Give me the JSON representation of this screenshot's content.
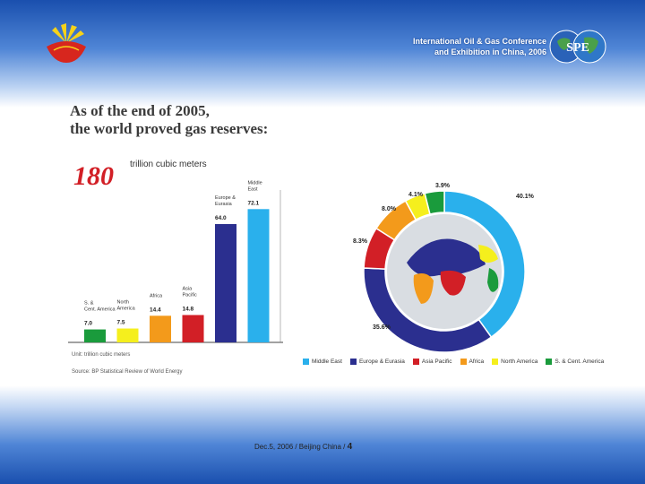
{
  "header": {
    "conference_line1": "International Oil & Gas Conference",
    "conference_line2": "and Exhibition in China, 2006",
    "spe_label": "SPE",
    "logo_icon": "company-logo-icon"
  },
  "title": {
    "line1": "As of the end of 2005,",
    "line2": "the world proved gas reserves:"
  },
  "total": {
    "value": "180",
    "unit": "trillion cubic meters"
  },
  "notes": {
    "unit": "Unit: trillion cubic meters",
    "source": "Source: BP Statistical Review of World Energy"
  },
  "footer": {
    "text": "Dec.5, 2006  /  Beijing China  /",
    "page": "4"
  },
  "chart_data": [
    {
      "type": "bar",
      "categories": [
        "S. & Cent. America",
        "North America",
        "Africa",
        "Asia Pacific",
        "Europe & Eurasia",
        "Middle East"
      ],
      "values": [
        7.0,
        7.5,
        14.4,
        14.8,
        64.0,
        72.1
      ],
      "value_labels": [
        "7.0",
        "7.5",
        "14.4",
        "14.8",
        "64.0",
        "72.1"
      ],
      "colors": [
        "#1a9b3c",
        "#f5ef1d",
        "#f39a1b",
        "#d21f26",
        "#2b2f8f",
        "#2ab0ec"
      ],
      "ylim": [
        0,
        80
      ]
    },
    {
      "type": "pie",
      "labels": [
        "Middle East",
        "Europe & Eurasia",
        "Asia Pacific",
        "Africa",
        "North America",
        "S. & Cent. America"
      ],
      "values": [
        40.1,
        35.6,
        8.3,
        8.0,
        4.1,
        3.9
      ],
      "value_labels": [
        "40.1%",
        "35.6%",
        "8.3%",
        "8.0%",
        "4.1%",
        "3.9%"
      ],
      "colors": [
        "#2ab0ec",
        "#2b2f8f",
        "#d21f26",
        "#f39a1b",
        "#f5ef1d",
        "#1a9b3c"
      ],
      "legend": "bottom"
    }
  ]
}
